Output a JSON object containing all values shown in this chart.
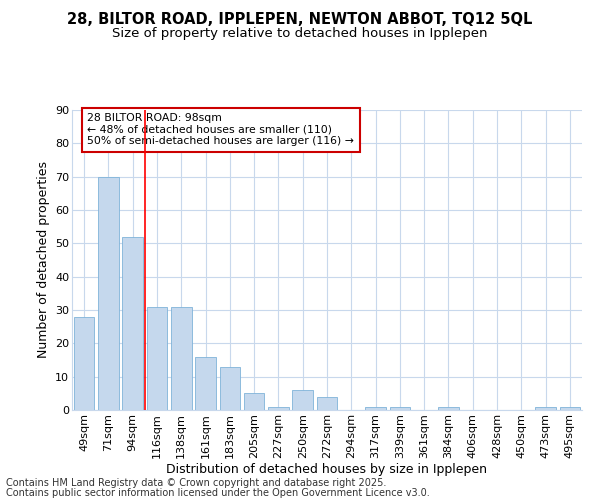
{
  "title": "28, BILTOR ROAD, IPPLEPEN, NEWTON ABBOT, TQ12 5QL",
  "subtitle": "Size of property relative to detached houses in Ipplepen",
  "xlabel": "Distribution of detached houses by size in Ipplepen",
  "ylabel": "Number of detached properties",
  "categories": [
    "49sqm",
    "71sqm",
    "94sqm",
    "116sqm",
    "138sqm",
    "161sqm",
    "183sqm",
    "205sqm",
    "227sqm",
    "250sqm",
    "272sqm",
    "294sqm",
    "317sqm",
    "339sqm",
    "361sqm",
    "384sqm",
    "406sqm",
    "428sqm",
    "450sqm",
    "473sqm",
    "495sqm"
  ],
  "values": [
    28,
    70,
    52,
    31,
    31,
    16,
    13,
    5,
    1,
    6,
    4,
    0,
    1,
    1,
    0,
    1,
    0,
    0,
    0,
    1,
    1
  ],
  "bar_color": "#c5d8ed",
  "bar_edge_color": "#7fb3d9",
  "background_color": "#ffffff",
  "plot_bg_color": "#ffffff",
  "grid_color": "#c8d8ec",
  "red_line_index": 2,
  "annotation_text": "28 BILTOR ROAD: 98sqm\n← 48% of detached houses are smaller (110)\n50% of semi-detached houses are larger (116) →",
  "annotation_box_color": "#ffffff",
  "annotation_box_edge": "#cc0000",
  "footer_line1": "Contains HM Land Registry data © Crown copyright and database right 2025.",
  "footer_line2": "Contains public sector information licensed under the Open Government Licence v3.0.",
  "ylim": [
    0,
    90
  ],
  "title_fontsize": 10.5,
  "subtitle_fontsize": 9.5,
  "axis_label_fontsize": 9,
  "tick_fontsize": 8,
  "footer_fontsize": 7
}
